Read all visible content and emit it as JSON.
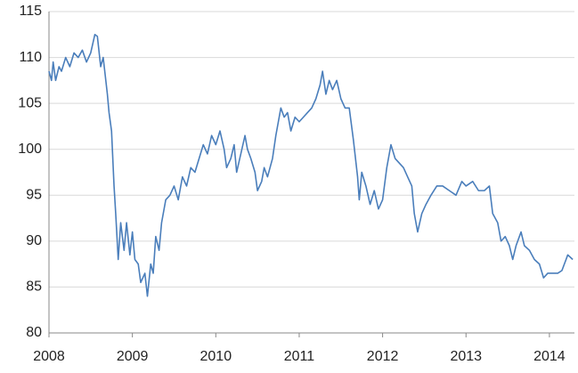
{
  "chart_data": {
    "type": "line",
    "x": [
      2008.0,
      2008.03,
      2008.05,
      2008.08,
      2008.12,
      2008.15,
      2008.2,
      2008.25,
      2008.3,
      2008.35,
      2008.4,
      2008.45,
      2008.5,
      2008.55,
      2008.58,
      2008.62,
      2008.65,
      2008.7,
      2008.72,
      2008.75,
      2008.78,
      2008.8,
      2008.83,
      2008.86,
      2008.9,
      2008.93,
      2008.97,
      2009.0,
      2009.03,
      2009.07,
      2009.1,
      2009.15,
      2009.18,
      2009.22,
      2009.25,
      2009.28,
      2009.32,
      2009.35,
      2009.4,
      2009.45,
      2009.5,
      2009.55,
      2009.6,
      2009.65,
      2009.7,
      2009.75,
      2009.8,
      2009.85,
      2009.9,
      2009.95,
      2010.0,
      2010.05,
      2010.1,
      2010.13,
      2010.18,
      2010.22,
      2010.25,
      2010.3,
      2010.35,
      2010.38,
      2010.42,
      2010.47,
      2010.5,
      2010.55,
      2010.58,
      2010.62,
      2010.68,
      2010.72,
      2010.75,
      2010.78,
      2010.82,
      2010.86,
      2010.9,
      2010.95,
      2011.0,
      2011.05,
      2011.1,
      2011.15,
      2011.2,
      2011.25,
      2011.28,
      2011.32,
      2011.36,
      2011.4,
      2011.45,
      2011.5,
      2011.55,
      2011.6,
      2011.65,
      2011.7,
      2011.72,
      2011.75,
      2011.8,
      2011.85,
      2011.9,
      2011.95,
      2012.0,
      2012.05,
      2012.1,
      2012.15,
      2012.2,
      2012.25,
      2012.3,
      2012.35,
      2012.38,
      2012.42,
      2012.47,
      2012.52,
      2012.58,
      2012.65,
      2012.72,
      2012.8,
      2012.88,
      2012.95,
      2013.0,
      2013.08,
      2013.15,
      2013.22,
      2013.28,
      2013.32,
      2013.38,
      2013.42,
      2013.47,
      2013.52,
      2013.56,
      2013.6,
      2013.66,
      2013.7,
      2013.76,
      2013.82,
      2013.88,
      2013.93,
      2013.98,
      2014.05,
      2014.1,
      2014.15,
      2014.22,
      2014.28
    ],
    "series": [
      {
        "color": "#4a7ebb",
        "values": [
          108.5,
          107.5,
          109.5,
          107.5,
          109,
          108.5,
          110,
          109,
          110.5,
          110,
          110.8,
          109.5,
          110.5,
          112.5,
          112.3,
          109,
          110,
          106,
          104,
          102,
          96,
          93,
          88,
          92,
          89,
          92,
          88.5,
          91,
          88,
          87.5,
          85.5,
          86.5,
          84,
          87.5,
          86.5,
          90.5,
          89,
          92,
          94.5,
          95,
          96,
          94.5,
          97,
          96,
          98,
          97.5,
          99,
          100.5,
          99.5,
          101.5,
          100.5,
          102,
          100,
          98,
          99,
          100.5,
          97.5,
          99.5,
          101.5,
          100,
          99,
          97.5,
          95.5,
          96.5,
          98,
          97,
          99,
          101.5,
          103,
          104.5,
          103.5,
          104,
          102,
          103.5,
          103,
          103.5,
          104,
          104.5,
          105.5,
          107,
          108.5,
          106,
          107.5,
          106.5,
          107.5,
          105.5,
          104.5,
          104.5,
          101,
          97,
          94.5,
          97.5,
          96,
          94,
          95.5,
          93.5,
          94.5,
          98,
          100.5,
          99,
          98.5,
          98,
          97,
          96,
          93,
          91,
          93,
          94,
          95,
          96,
          96,
          95.5,
          95,
          96.5,
          96,
          96.5,
          95.5,
          95.5,
          96,
          93,
          92,
          90,
          90.5,
          89.5,
          88,
          89.5,
          91,
          89.5,
          89,
          88,
          87.5,
          86,
          86.5,
          86.5,
          86.5,
          86.8,
          88.5,
          88
        ]
      }
    ],
    "xlim": [
      2008,
      2014.3
    ],
    "xticks": [
      2008,
      2009,
      2010,
      2011,
      2012,
      2013,
      2014
    ],
    "ylim": [
      80,
      115
    ],
    "yticks": [
      80,
      85,
      90,
      95,
      100,
      105,
      110,
      115
    ],
    "grid": true
  }
}
